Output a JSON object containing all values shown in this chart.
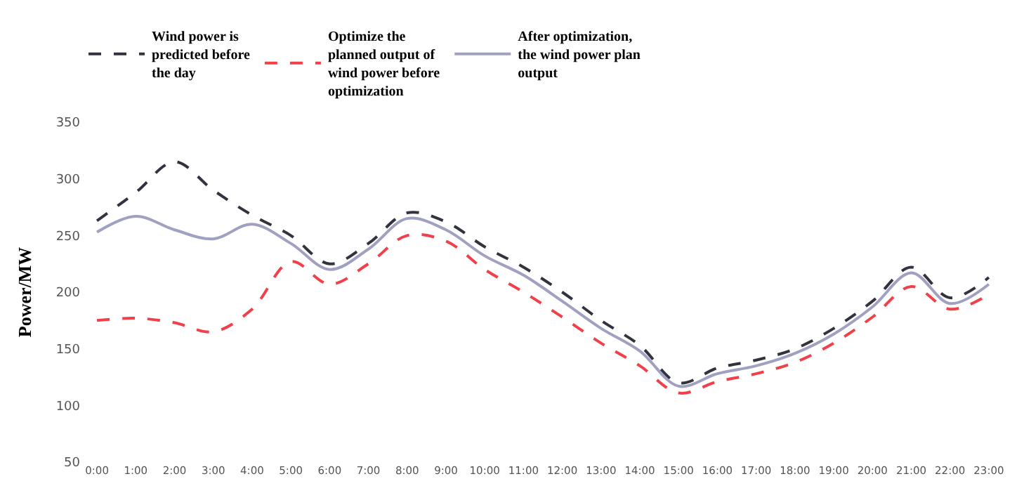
{
  "chart_data": {
    "type": "line",
    "ylabel": "Power/MW",
    "categories": [
      "0:00",
      "1:00",
      "2:00",
      "3:00",
      "4:00",
      "5:00",
      "6:00",
      "7:00",
      "8:00",
      "9:00",
      "10:00",
      "11:00",
      "12:00",
      "13:00",
      "14:00",
      "15:00",
      "16:00",
      "17:00",
      "18:00",
      "19:00",
      "20:00",
      "21:00",
      "22:00",
      "23:00"
    ],
    "ylim": [
      50,
      350
    ],
    "yticks": [
      50,
      100,
      150,
      200,
      250,
      300,
      350
    ],
    "grid": false,
    "legend": "top",
    "marker": "none",
    "series": [
      {
        "name": "Wind power is\npredicted before\nthe day",
        "color": "#333340",
        "line_style": "dashed",
        "values": [
          263,
          288,
          315,
          290,
          268,
          250,
          225,
          243,
          270,
          262,
          240,
          222,
          200,
          175,
          153,
          120,
          133,
          140,
          150,
          168,
          192,
          222,
          195,
          213
        ]
      },
      {
        "name": "Optimize the\nplanned output of\nwind power before\noptimization",
        "color": "#f0404a",
        "line_style": "dashed",
        "values": [
          175,
          177,
          173,
          165,
          185,
          227,
          207,
          225,
          250,
          245,
          220,
          200,
          178,
          155,
          135,
          111,
          121,
          128,
          138,
          155,
          178,
          205,
          185,
          198
        ]
      },
      {
        "name": "After optimization,\nthe wind power plan\noutput",
        "color": "#a0a0c0",
        "line_style": "solid",
        "values": [
          253,
          267,
          255,
          247,
          260,
          243,
          220,
          238,
          265,
          255,
          232,
          215,
          192,
          168,
          148,
          117,
          128,
          135,
          146,
          163,
          187,
          217,
          190,
          207
        ]
      }
    ]
  }
}
